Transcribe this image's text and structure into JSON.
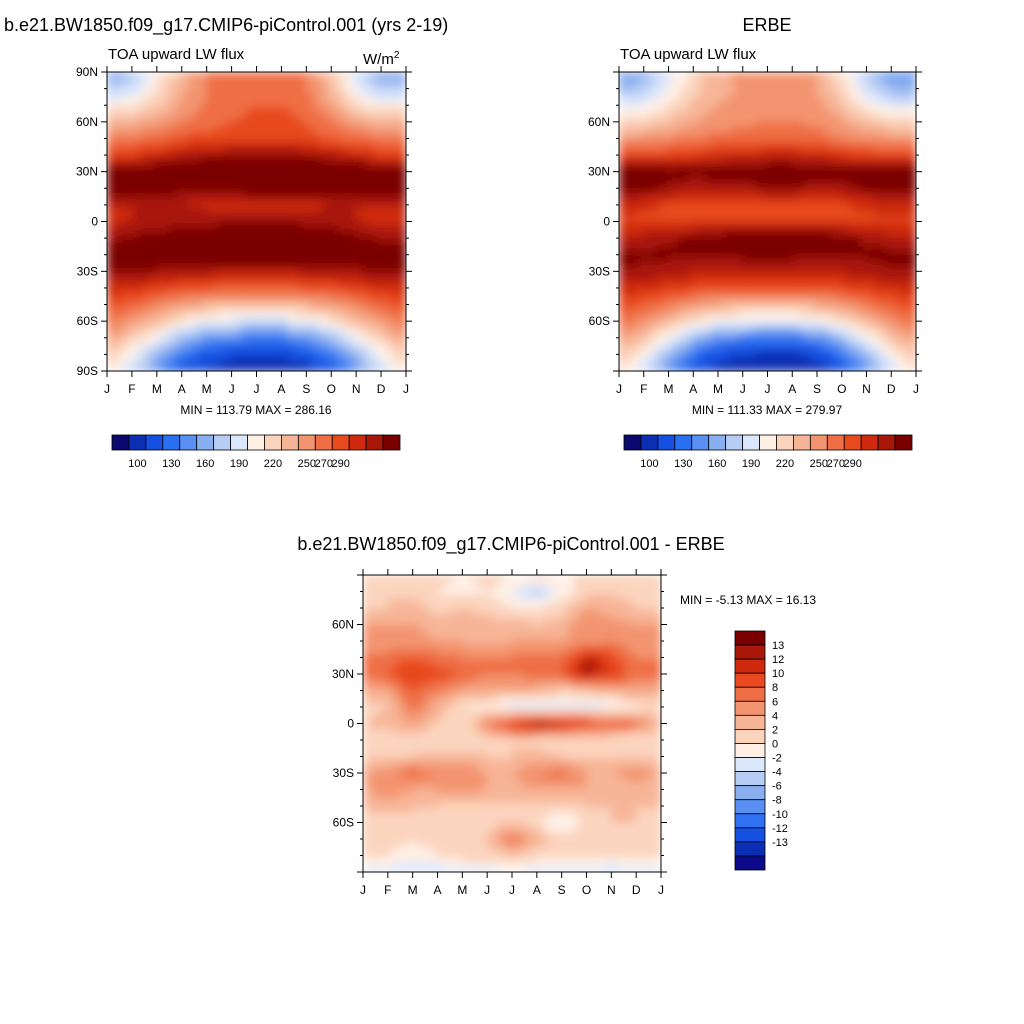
{
  "panels": [
    {
      "title": "b.e21.BW1850.f09_g17.CMIP6-piControl.001 (yrs 2-19)",
      "subtitle": "TOA upward LW flux",
      "units": "W/m",
      "units_sup": "2",
      "minmax": "MIN = 113.79 MAX = 286.16"
    },
    {
      "title": "ERBE",
      "subtitle": "TOA upward LW flux",
      "minmax": "MIN = 111.33 MAX = 279.97"
    },
    {
      "title": "b.e21.BW1850.f09_g17.CMIP6-piControl.001 - ERBE",
      "minmax": "MIN =  -5.13 MAX =  16.13"
    }
  ],
  "colors": {
    "abs_palette": [
      "#0a0a6e",
      "#0a2eb4",
      "#1650e0",
      "#2a70f0",
      "#5a90f4",
      "#8aafef",
      "#b8cdf4",
      "#dbe7fb",
      "#fff0e6",
      "#fbd4bd",
      "#f7b597",
      "#f39470",
      "#ef6e45",
      "#e8491f",
      "#cf2a0d",
      "#a81708",
      "#7a0000"
    ],
    "diff_palette": [
      "#0a0a8a",
      "#0a2eb4",
      "#1650e0",
      "#3070f2",
      "#5a90f4",
      "#8aafef",
      "#b8cdf4",
      "#dbe7fb",
      "#fff0e6",
      "#fbd4bd",
      "#f7b597",
      "#f39470",
      "#ef6e45",
      "#e8491f",
      "#cf2a0d",
      "#a81708",
      "#7a0000"
    ]
  },
  "chart_data": [
    {
      "type": "heatmap",
      "title": "b.e21.BW1850.f09_g17.CMIP6-piControl.001 (yrs 2-19)",
      "subtitle": "TOA upward LW flux",
      "units": "W/m^2",
      "x_ticks": [
        "J",
        "F",
        "M",
        "A",
        "M",
        "J",
        "J",
        "A",
        "S",
        "O",
        "N",
        "D",
        "J"
      ],
      "y_ticks": [
        "90N",
        "60N",
        "30N",
        "0",
        "30S",
        "60S",
        "90S"
      ],
      "ylim": [
        -90,
        90
      ],
      "min": 113.79,
      "max": 286.16,
      "colorbar_labels": [
        "100",
        "130",
        "160",
        "190",
        "220",
        "250",
        "270",
        "290"
      ],
      "colorbar_levels": [
        100,
        110,
        120,
        130,
        140,
        150,
        160,
        170,
        180,
        190,
        200,
        210,
        220,
        230,
        240,
        250,
        260,
        270,
        280,
        290
      ],
      "z_latitudes": [
        -90,
        -80,
        -70,
        -60,
        -50,
        -40,
        -30,
        -20,
        -10,
        0,
        10,
        20,
        30,
        40,
        50,
        60,
        70,
        80,
        90
      ],
      "z_months": [
        "J",
        "F",
        "M",
        "A",
        "M",
        "J",
        "J",
        "A",
        "S",
        "O",
        "N",
        "D",
        "J"
      ],
      "z_values": [
        [
          190,
          170,
          145,
          125,
          118,
          114,
          114,
          114,
          116,
          125,
          145,
          170,
          190
        ],
        [
          200,
          182,
          160,
          138,
          126,
          122,
          120,
          120,
          125,
          138,
          160,
          182,
          200
        ],
        [
          212,
          198,
          180,
          160,
          148,
          142,
          140,
          140,
          146,
          160,
          180,
          198,
          212
        ],
        [
          224,
          214,
          202,
          190,
          180,
          176,
          174,
          174,
          180,
          190,
          202,
          214,
          224
        ],
        [
          234,
          228,
          220,
          212,
          207,
          204,
          203,
          203,
          207,
          212,
          220,
          228,
          234
        ],
        [
          246,
          244,
          238,
          234,
          232,
          230,
          230,
          230,
          232,
          234,
          238,
          244,
          246
        ],
        [
          262,
          262,
          258,
          256,
          254,
          252,
          252,
          252,
          254,
          256,
          258,
          262,
          262
        ],
        [
          266,
          268,
          270,
          270,
          270,
          272,
          272,
          272,
          270,
          268,
          266,
          266,
          266
        ],
        [
          258,
          262,
          266,
          270,
          276,
          280,
          282,
          282,
          280,
          272,
          264,
          258,
          258
        ],
        [
          246,
          250,
          252,
          254,
          256,
          258,
          258,
          258,
          256,
          254,
          250,
          246,
          246
        ],
        [
          250,
          250,
          250,
          250,
          248,
          246,
          245,
          245,
          246,
          250,
          250,
          250,
          250
        ],
        [
          275,
          272,
          268,
          264,
          262,
          266,
          270,
          270,
          268,
          266,
          270,
          275,
          275
        ],
        [
          272,
          270,
          272,
          276,
          276,
          276,
          278,
          278,
          276,
          274,
          274,
          272,
          272
        ],
        [
          240,
          240,
          246,
          252,
          256,
          258,
          260,
          260,
          258,
          252,
          246,
          240,
          240
        ],
        [
          222,
          222,
          226,
          232,
          234,
          236,
          236,
          236,
          234,
          230,
          226,
          222,
          222
        ],
        [
          205,
          205,
          212,
          220,
          226,
          230,
          232,
          232,
          230,
          222,
          210,
          205,
          205
        ],
        [
          185,
          188,
          198,
          212,
          222,
          228,
          230,
          230,
          226,
          210,
          192,
          185,
          185
        ],
        [
          165,
          172,
          190,
          208,
          220,
          226,
          228,
          228,
          222,
          204,
          180,
          165,
          165
        ],
        [
          150,
          160,
          186,
          206,
          220,
          228,
          230,
          230,
          222,
          200,
          172,
          150,
          150
        ]
      ]
    },
    {
      "type": "heatmap",
      "title": "ERBE",
      "subtitle": "TOA upward LW flux",
      "x_ticks": [
        "J",
        "F",
        "M",
        "A",
        "M",
        "J",
        "J",
        "A",
        "S",
        "O",
        "N",
        "D",
        "J"
      ],
      "y_ticks": [
        "60N",
        "30N",
        "0",
        "30S",
        "60S"
      ],
      "ylim": [
        -90,
        90
      ],
      "min": 111.33,
      "max": 279.97,
      "colorbar_labels": [
        "100",
        "130",
        "160",
        "190",
        "220",
        "250",
        "270",
        "290"
      ],
      "colorbar_levels": [
        100,
        110,
        120,
        130,
        140,
        150,
        160,
        170,
        180,
        190,
        200,
        210,
        220,
        230,
        240,
        250,
        260,
        270,
        280,
        290
      ],
      "z_latitudes": [
        -90,
        -80,
        -70,
        -60,
        -50,
        -40,
        -30,
        -20,
        -10,
        0,
        10,
        20,
        30,
        40,
        50,
        60,
        70,
        80,
        90
      ],
      "z_months": [
        "J",
        "F",
        "M",
        "A",
        "M",
        "J",
        "J",
        "A",
        "S",
        "O",
        "N",
        "D",
        "J"
      ],
      "z_values": [
        [
          192,
          172,
          146,
          124,
          116,
          112,
          112,
          112,
          115,
          124,
          146,
          172,
          192
        ],
        [
          202,
          184,
          160,
          136,
          124,
          120,
          118,
          118,
          123,
          136,
          160,
          184,
          202
        ],
        [
          214,
          200,
          182,
          160,
          146,
          140,
          138,
          138,
          144,
          160,
          182,
          200,
          214
        ],
        [
          226,
          216,
          204,
          192,
          182,
          178,
          176,
          176,
          182,
          192,
          204,
          216,
          226
        ],
        [
          236,
          230,
          222,
          214,
          208,
          205,
          204,
          204,
          208,
          214,
          222,
          230,
          236
        ],
        [
          246,
          244,
          240,
          236,
          234,
          232,
          232,
          232,
          234,
          236,
          240,
          244,
          246
        ],
        [
          258,
          258,
          254,
          252,
          250,
          248,
          248,
          248,
          250,
          252,
          254,
          258,
          258
        ],
        [
          264,
          262,
          262,
          262,
          262,
          264,
          264,
          264,
          262,
          262,
          262,
          264,
          264
        ],
        [
          252,
          254,
          258,
          262,
          266,
          270,
          272,
          272,
          270,
          264,
          258,
          252,
          252
        ],
        [
          238,
          238,
          240,
          240,
          240,
          240,
          240,
          240,
          240,
          240,
          238,
          238,
          238
        ],
        [
          244,
          242,
          238,
          236,
          236,
          236,
          236,
          236,
          236,
          238,
          242,
          244,
          244
        ],
        [
          268,
          264,
          258,
          254,
          254,
          256,
          258,
          258,
          256,
          256,
          262,
          268,
          268
        ],
        [
          270,
          268,
          264,
          264,
          266,
          268,
          270,
          270,
          268,
          266,
          268,
          270,
          270
        ],
        [
          236,
          234,
          236,
          240,
          244,
          246,
          248,
          248,
          246,
          242,
          238,
          236,
          236
        ],
        [
          214,
          214,
          218,
          222,
          224,
          226,
          226,
          226,
          224,
          220,
          216,
          214,
          214
        ],
        [
          196,
          196,
          202,
          210,
          214,
          218,
          220,
          220,
          218,
          212,
          202,
          196,
          196
        ],
        [
          176,
          180,
          190,
          202,
          210,
          214,
          216,
          216,
          214,
          202,
          186,
          176,
          176
        ],
        [
          158,
          164,
          180,
          196,
          206,
          212,
          214,
          214,
          210,
          194,
          172,
          158,
          158
        ],
        [
          146,
          154,
          176,
          196,
          208,
          214,
          216,
          216,
          210,
          190,
          164,
          146,
          146
        ]
      ]
    },
    {
      "type": "heatmap",
      "title": "b.e21.BW1850.f09_g17.CMIP6-piControl.001 - ERBE",
      "x_ticks": [
        "J",
        "F",
        "M",
        "A",
        "M",
        "J",
        "J",
        "A",
        "S",
        "O",
        "N",
        "D",
        "J"
      ],
      "y_ticks": [
        "60N",
        "30N",
        "0",
        "30S",
        "60S"
      ],
      "ylim": [
        -90,
        90
      ],
      "min": -5.13,
      "max": 16.13,
      "colorbar_labels": [
        "13",
        "12",
        "10",
        "8",
        "6",
        "4",
        "2",
        "0",
        "-2",
        "-4",
        "-6",
        "-8",
        "-10",
        "-12",
        "-13"
      ],
      "colorbar_levels": [
        -13,
        -12,
        -10,
        -8,
        -6,
        -4,
        -2,
        0,
        2,
        4,
        6,
        8,
        10,
        12,
        13
      ],
      "z_latitudes": [
        -90,
        -80,
        -70,
        -60,
        -50,
        -40,
        -30,
        -20,
        -10,
        0,
        10,
        20,
        30,
        40,
        50,
        60,
        70,
        80,
        90
      ],
      "z_months": [
        "J",
        "F",
        "M",
        "A",
        "M",
        "J",
        "J",
        "A",
        "S",
        "O",
        "N",
        "D",
        "J"
      ],
      "z_values": [
        [
          -1,
          -1,
          -2,
          -2,
          -1,
          -1,
          0,
          -1,
          -1,
          -1,
          -2,
          -1,
          -1
        ],
        [
          2,
          2,
          1,
          2,
          3,
          3,
          4,
          3,
          2,
          2,
          2,
          2,
          2
        ],
        [
          3,
          3,
          2,
          3,
          3,
          4,
          9,
          5,
          3,
          3,
          3,
          3,
          3
        ],
        [
          3,
          3,
          4,
          3,
          4,
          3,
          4,
          3,
          -1,
          3,
          4,
          4,
          3
        ],
        [
          4,
          5,
          4,
          4,
          3,
          3,
          4,
          3,
          3,
          4,
          4,
          4,
          4
        ],
        [
          5,
          8,
          6,
          6,
          7,
          6,
          5,
          6,
          6,
          6,
          5,
          5,
          5
        ],
        [
          6,
          7,
          9,
          8,
          8,
          6,
          6,
          8,
          9,
          6,
          6,
          7,
          6
        ],
        [
          3,
          4,
          4,
          5,
          5,
          4,
          4,
          5,
          4,
          4,
          4,
          4,
          3
        ],
        [
          2,
          2,
          3,
          2,
          2,
          3,
          4,
          3,
          2,
          2,
          2,
          2,
          2
        ],
        [
          4,
          5,
          6,
          4,
          2,
          8,
          12,
          15,
          14,
          12,
          10,
          9,
          4
        ],
        [
          3,
          4,
          9,
          5,
          2,
          1,
          -1,
          -1,
          -2,
          -1,
          0,
          2,
          3
        ],
        [
          5,
          6,
          10,
          8,
          6,
          6,
          6,
          5,
          4,
          4,
          5,
          6,
          5
        ],
        [
          9,
          10,
          12,
          11,
          10,
          8,
          8,
          9,
          10,
          14,
          12,
          9,
          9
        ],
        [
          8,
          9,
          10,
          9,
          8,
          8,
          8,
          9,
          9,
          13,
          11,
          8,
          8
        ],
        [
          6,
          6,
          7,
          6,
          6,
          5,
          6,
          6,
          6,
          7,
          8,
          6,
          6
        ],
        [
          6,
          6,
          6,
          5,
          6,
          5,
          5,
          4,
          5,
          8,
          7,
          6,
          6
        ],
        [
          4,
          4,
          5,
          3,
          4,
          3,
          2,
          2,
          3,
          6,
          5,
          4,
          4
        ],
        [
          3,
          4,
          3,
          2,
          1,
          2,
          0,
          -3,
          1,
          3,
          4,
          3,
          3
        ],
        [
          3,
          3,
          2,
          3,
          2,
          3,
          2,
          3,
          2,
          2,
          3,
          3,
          3
        ]
      ]
    }
  ]
}
